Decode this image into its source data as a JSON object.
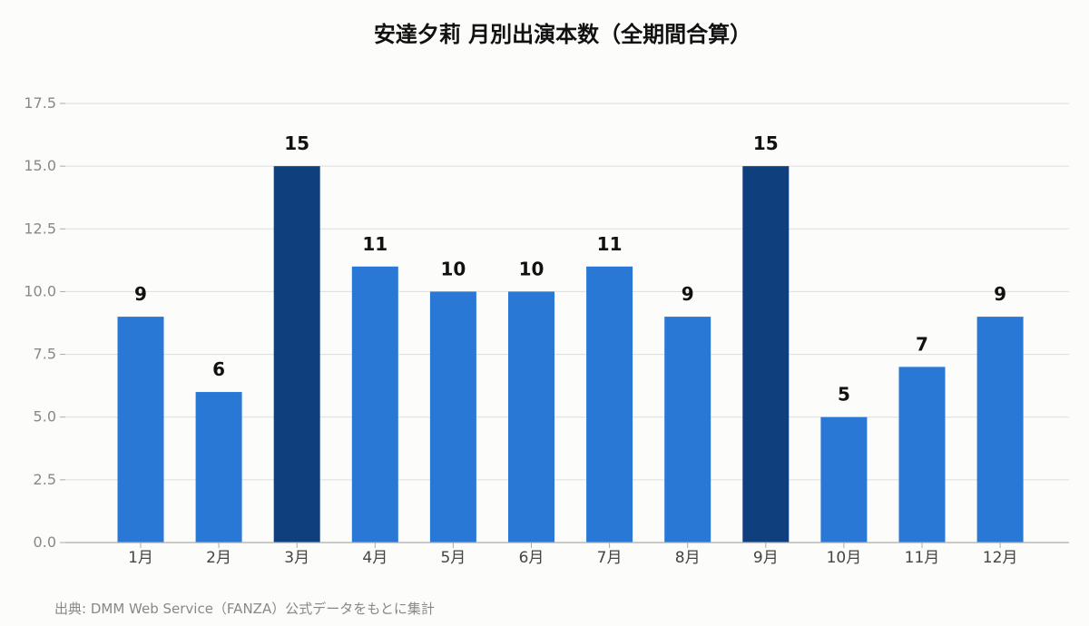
{
  "chart_data": {
    "type": "bar",
    "title": "安達夕莉 月別出演本数（全期間合算）",
    "xlabel": "",
    "ylabel": "",
    "categories": [
      "1月",
      "2月",
      "3月",
      "4月",
      "5月",
      "6月",
      "7月",
      "8月",
      "9月",
      "10月",
      "11月",
      "12月"
    ],
    "values": [
      9,
      6,
      15,
      11,
      10,
      10,
      11,
      9,
      15,
      5,
      7,
      9
    ],
    "highlight": [
      false,
      false,
      true,
      false,
      false,
      false,
      false,
      false,
      true,
      false,
      false,
      false
    ],
    "ylim": [
      0,
      17.5
    ],
    "yticks": [
      "0.0",
      "2.5",
      "5.0",
      "7.5",
      "10.0",
      "12.5",
      "15.0",
      "17.5"
    ],
    "grid": true,
    "colors": {
      "bar": "#2a78d6",
      "highlight": "#103f7e",
      "grid": "#dddddd",
      "axis": "#aaaaaa"
    },
    "source": "出典: DMM Web Service（FANZA）公式データをもとに集計"
  }
}
